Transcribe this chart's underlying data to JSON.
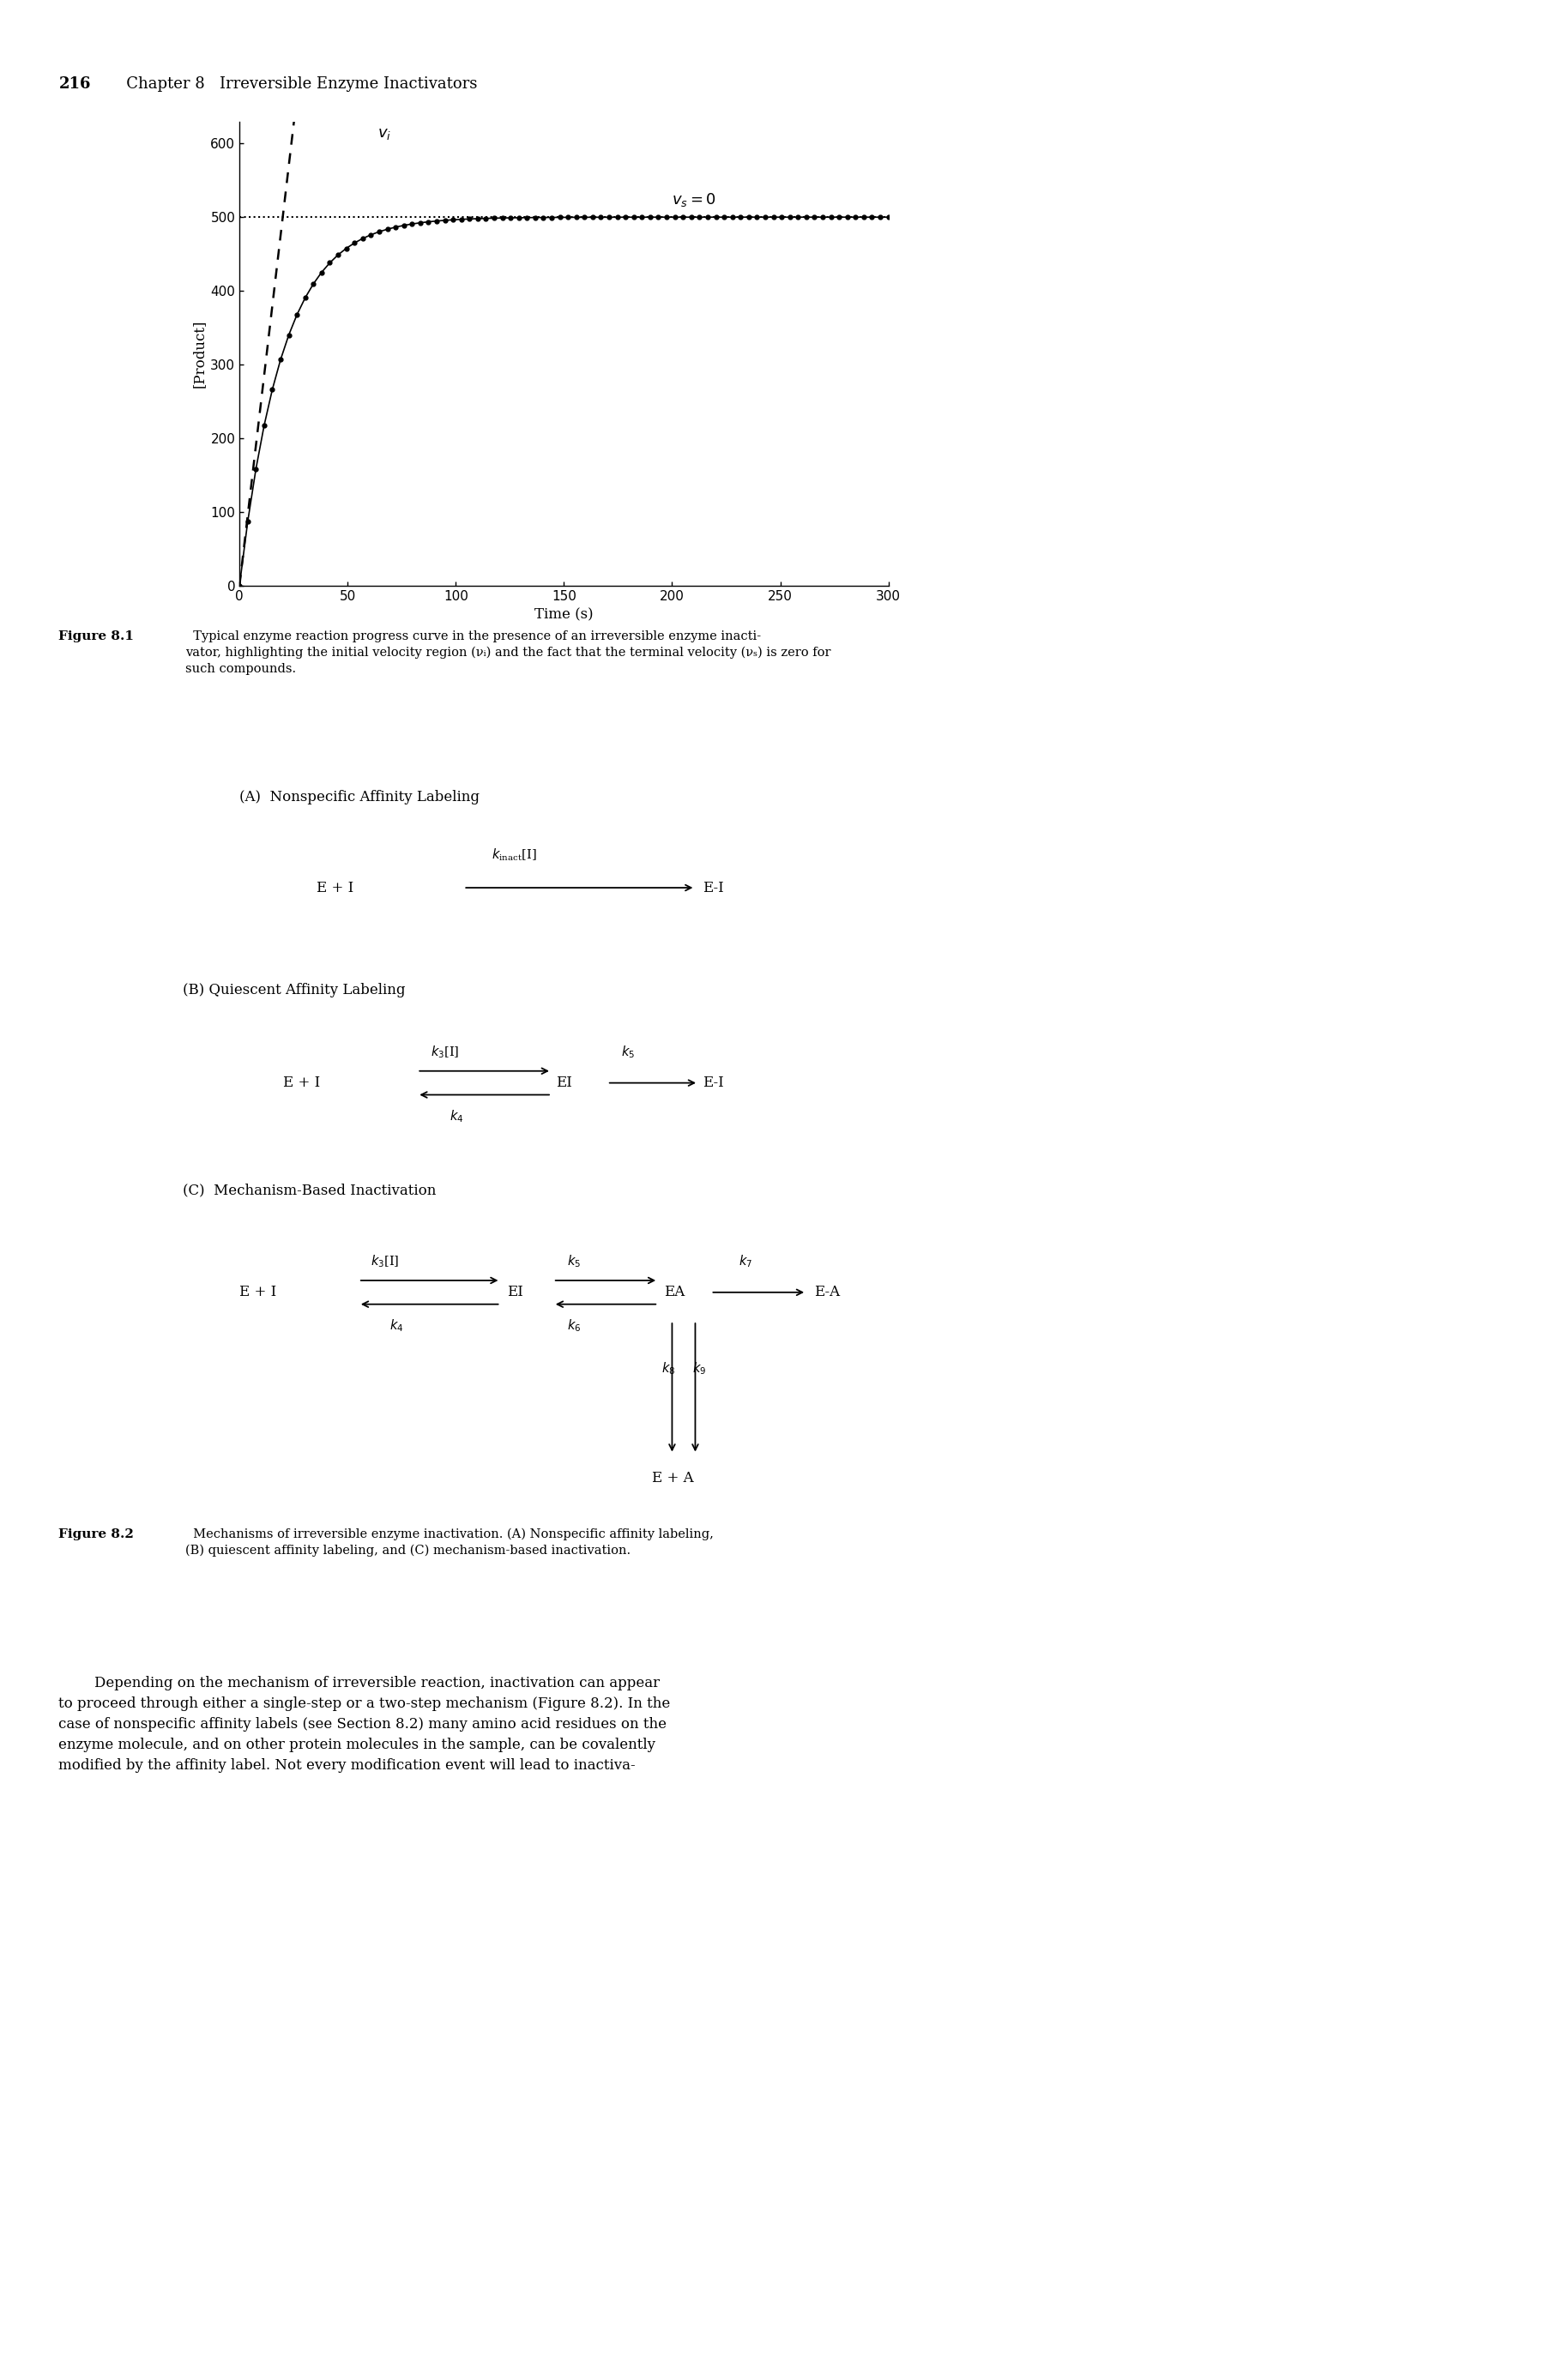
{
  "page_header_num": "216",
  "page_header_rest": "   Chapter 8   Irreversible Enzyme Inactivators",
  "xlabel": "Time (s)",
  "ylabel": "[Product]",
  "xlim": [
    0,
    300
  ],
  "ylim": [
    0,
    630
  ],
  "xticks": [
    0,
    50,
    100,
    150,
    200,
    250,
    300
  ],
  "yticks": [
    0,
    100,
    200,
    300,
    400,
    500,
    600
  ],
  "P_max": 500,
  "k_curve": 0.05,
  "vi_slope": 25,
  "background_color": "#ffffff"
}
